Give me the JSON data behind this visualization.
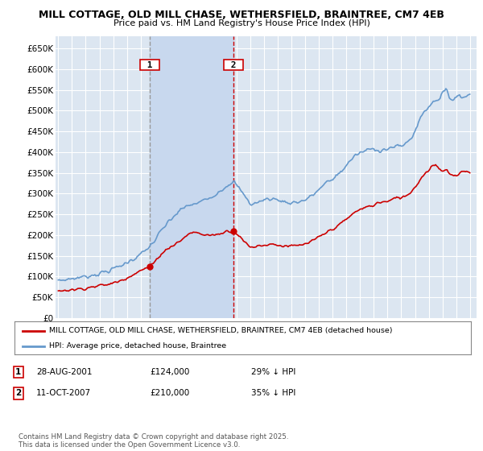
{
  "title_line1": "MILL COTTAGE, OLD MILL CHASE, WETHERSFIELD, BRAINTREE, CM7 4EB",
  "title_line2": "Price paid vs. HM Land Registry's House Price Index (HPI)",
  "ylim": [
    0,
    680000
  ],
  "yticks": [
    0,
    50000,
    100000,
    150000,
    200000,
    250000,
    300000,
    350000,
    400000,
    450000,
    500000,
    550000,
    600000,
    650000
  ],
  "ytick_labels": [
    "£0",
    "£50K",
    "£100K",
    "£150K",
    "£200K",
    "£250K",
    "£300K",
    "£350K",
    "£400K",
    "£450K",
    "£500K",
    "£550K",
    "£600K",
    "£650K"
  ],
  "legend_entry1": "MILL COTTAGE, OLD MILL CHASE, WETHERSFIELD, BRAINTREE, CM7 4EB (detached house)",
  "legend_entry2": "HPI: Average price, detached house, Braintree",
  "annotation1_label": "1",
  "annotation1_date": "28-AUG-2001",
  "annotation1_price": "£124,000",
  "annotation1_hpi": "29% ↓ HPI",
  "annotation2_label": "2",
  "annotation2_date": "11-OCT-2007",
  "annotation2_price": "£210,000",
  "annotation2_hpi": "35% ↓ HPI",
  "footer": "Contains HM Land Registry data © Crown copyright and database right 2025.\nThis data is licensed under the Open Government Licence v3.0.",
  "line_color_red": "#cc0000",
  "line_color_blue": "#6699cc",
  "background_color": "#dce6f1",
  "shade_color": "#c8d8ee",
  "grid_color": "#ffffff",
  "vline1_color": "#999999",
  "vline2_color": "#cc0000",
  "vline1_x": 2001.65,
  "vline2_x": 2007.78,
  "point1_x": 2001.65,
  "point1_y": 124000,
  "point2_x": 2007.78,
  "point2_y": 210000,
  "xmin": 1994.8,
  "xmax": 2025.5
}
